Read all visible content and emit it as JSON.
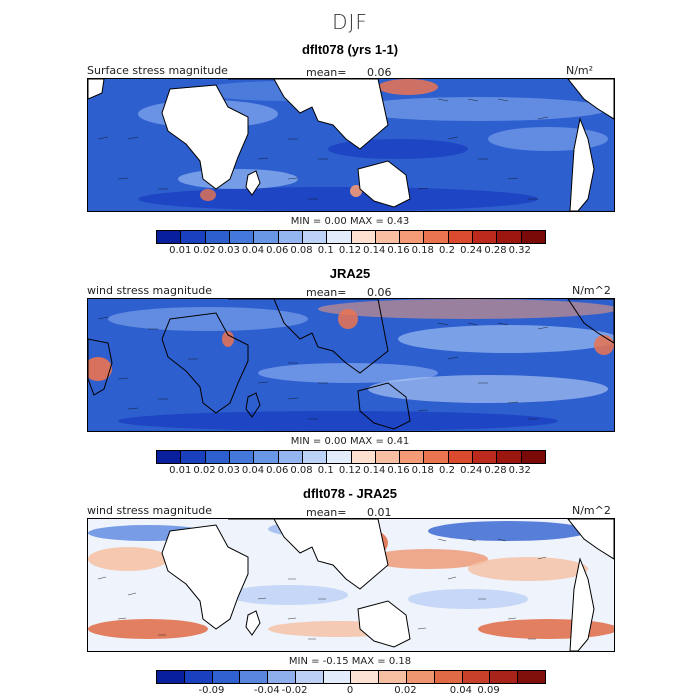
{
  "title": "DJF",
  "panels": [
    {
      "heading": "dflt078 (yrs 1-1)",
      "left_label": "Surface stress magnitude",
      "mean_label": "mean=",
      "mean_value": "0.06",
      "units": "N/m²",
      "min_label": "MIN =",
      "min_value": "0.00",
      "max_label": "MAX =",
      "max_value": "0.43",
      "ticks": [
        "0.01",
        "0.02",
        "0.03",
        "0.04",
        "0.06",
        "0.08",
        "0.1",
        "0.12",
        "0.14",
        "0.16",
        "0.18",
        "0.2",
        "0.24",
        "0.28",
        "0.32"
      ],
      "colors": [
        "#08209e",
        "#1a3fbf",
        "#2e5fcf",
        "#4478db",
        "#6a96e6",
        "#94b6f0",
        "#bcd3f7",
        "#e2ecfb",
        "#fde0d0",
        "#f9bfa3",
        "#f39a76",
        "#ea7350",
        "#d94a2f",
        "#bb2a1c",
        "#9c1710",
        "#7a0a08"
      ]
    },
    {
      "heading": "JRA25",
      "left_label": "wind stress magnitude",
      "mean_label": "mean=",
      "mean_value": "0.06",
      "units": "N/m^2",
      "min_label": "MIN =",
      "min_value": "0.00",
      "max_label": "MAX =",
      "max_value": "0.41",
      "ticks": [
        "0.01",
        "0.02",
        "0.03",
        "0.04",
        "0.06",
        "0.08",
        "0.1",
        "0.12",
        "0.14",
        "0.16",
        "0.18",
        "0.2",
        "0.24",
        "0.28",
        "0.32"
      ],
      "colors": [
        "#08209e",
        "#1a3fbf",
        "#2e5fcf",
        "#4478db",
        "#6a96e6",
        "#94b6f0",
        "#bcd3f7",
        "#e2ecfb",
        "#fde0d0",
        "#f9bfa3",
        "#f39a76",
        "#ea7350",
        "#d94a2f",
        "#bb2a1c",
        "#9c1710",
        "#7a0a08"
      ]
    },
    {
      "heading": "dflt078 - JRA25",
      "left_label": "wind stress magnitude",
      "mean_label": "mean=",
      "mean_value": "0.01",
      "units": "N/m^2",
      "min_label": "MIN =",
      "min_value": "-0.15",
      "max_label": "MAX =",
      "max_value": "0.18",
      "ticks": [
        "-0.09",
        "-0.04",
        "-0.02",
        "0",
        "0.02",
        "0.04",
        "0.09"
      ],
      "colors": [
        "#08209e",
        "#1a3fbf",
        "#3160d0",
        "#5b86e0",
        "#8eaeec",
        "#bcd0f5",
        "#e3ecfb",
        "#fbe2d4",
        "#f6bfa1",
        "#ee9670",
        "#e06a45",
        "#c8402a",
        "#a8241a",
        "#80100c"
      ]
    }
  ]
}
